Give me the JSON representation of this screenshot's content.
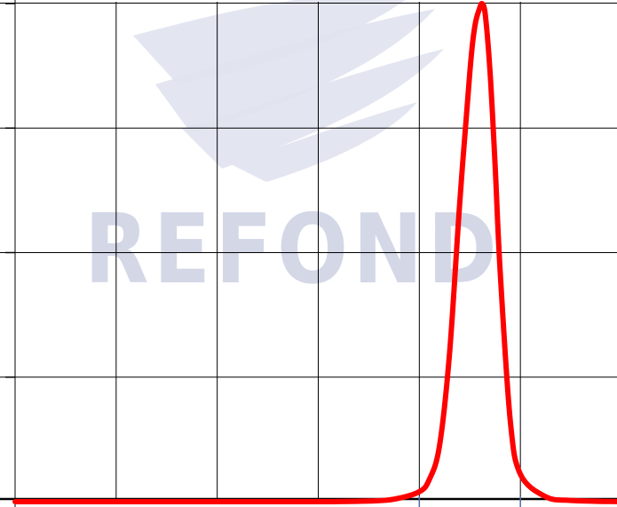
{
  "watermark": {
    "text": "REFOND",
    "color": "#d3d7e6",
    "swoosh_color": "#e0e3ee"
  },
  "colors": {
    "background": "#ffffff",
    "grid": "#000000",
    "axis": "#000000",
    "axis_accent": "#4a6fa5",
    "series": "#ff0000"
  },
  "chart_data": {
    "type": "line",
    "title": "",
    "xlabel": "",
    "ylabel": "",
    "xlim": [
      0,
      6
    ],
    "ylim": [
      0,
      4
    ],
    "grid": true,
    "legend": "none",
    "series": [
      {
        "x": [
          0,
          1,
          2,
          3,
          3.5,
          3.75,
          4,
          4.1,
          4.2,
          4.3,
          4.4,
          4.5,
          4.55,
          4.6,
          4.62,
          4.65,
          4.7,
          4.75,
          4.8,
          4.9,
          5,
          5.25,
          5.5,
          6
        ],
        "y": [
          0,
          0,
          0,
          0,
          0.005,
          0.02,
          0.08,
          0.18,
          0.45,
          1.2,
          2.4,
          3.45,
          3.82,
          3.97,
          4.0,
          3.93,
          3.45,
          2.7,
          1.85,
          0.65,
          0.22,
          0.04,
          0.01,
          0
        ]
      }
    ]
  }
}
